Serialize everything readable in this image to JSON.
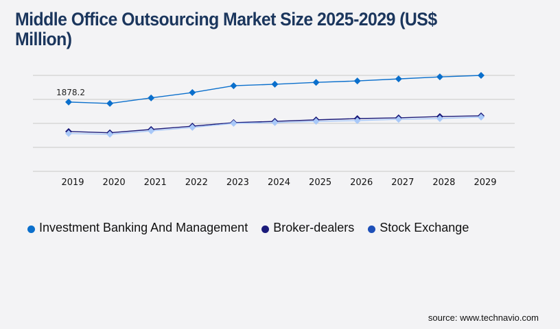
{
  "chart_data": {
    "type": "line",
    "title": "Middle Office Outsourcing Market Size 2025-2029 (US$ Million)",
    "xlabel": "",
    "ylabel": "",
    "categories": [
      "2019",
      "2020",
      "2021",
      "2022",
      "2023",
      "2024",
      "2025",
      "2026",
      "2027",
      "2028",
      "2029"
    ],
    "ylim": [
      0,
      2600
    ],
    "gridlines": [
      0,
      650,
      1300,
      1950,
      2600
    ],
    "grid": true,
    "legend_position": "bottom-left",
    "series": [
      {
        "name": "Investment Banking And Management",
        "color": "#0a6fcc",
        "values": [
          1878.2,
          1840,
          1990,
          2135,
          2320,
          2360,
          2410,
          2450,
          2505,
          2560,
          2600
        ]
      },
      {
        "name": "Broker-dealers",
        "color": "#1a1a7a",
        "values": [
          1080,
          1045,
          1135,
          1225,
          1320,
          1355,
          1395,
          1430,
          1450,
          1485,
          1505
        ]
      },
      {
        "name": "Stock Exchange",
        "color": "#a8c8f8",
        "legend_color": "#1d4fb8",
        "values": [
          1025,
          1005,
          1095,
          1190,
          1300,
          1320,
          1355,
          1375,
          1410,
          1430,
          1470
        ]
      }
    ],
    "annotations": [
      {
        "series": 0,
        "index": 0,
        "text": "1878.2"
      }
    ]
  },
  "footer": {
    "source": "source: www.technavio.com"
  }
}
